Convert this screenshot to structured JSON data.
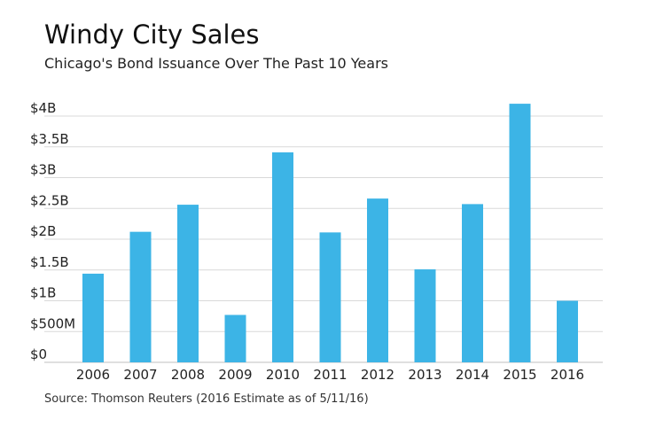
{
  "chart_data": {
    "type": "bar",
    "title": "Windy City Sales",
    "subtitle": "Chicago's Bond Issuance Over The Past 10 Years",
    "source": "Source: Thomson Reuters (2016 Estimate as of 5/11/16)",
    "xlabel": "",
    "ylabel": "",
    "ylim": [
      0,
      4
    ],
    "grid": true,
    "color": "#3cb4e6",
    "y_ticks": [
      {
        "value": 0,
        "label": "$0"
      },
      {
        "value": 0.5,
        "label": "$500M"
      },
      {
        "value": 1,
        "label": "$1B"
      },
      {
        "value": 1.5,
        "label": "$1.5B"
      },
      {
        "value": 2,
        "label": "$2B"
      },
      {
        "value": 2.5,
        "label": "$2.5B"
      },
      {
        "value": 3,
        "label": "$3B"
      },
      {
        "value": 3.5,
        "label": "$3.5B"
      },
      {
        "value": 4,
        "label": "$4B"
      }
    ],
    "categories": [
      "2006",
      "2007",
      "2008",
      "2009",
      "2010",
      "2011",
      "2012",
      "2013",
      "2014",
      "2015",
      "2016"
    ],
    "values": [
      1.44,
      2.12,
      2.56,
      0.77,
      3.41,
      2.11,
      2.66,
      1.51,
      2.57,
      4.2,
      1.0
    ]
  }
}
